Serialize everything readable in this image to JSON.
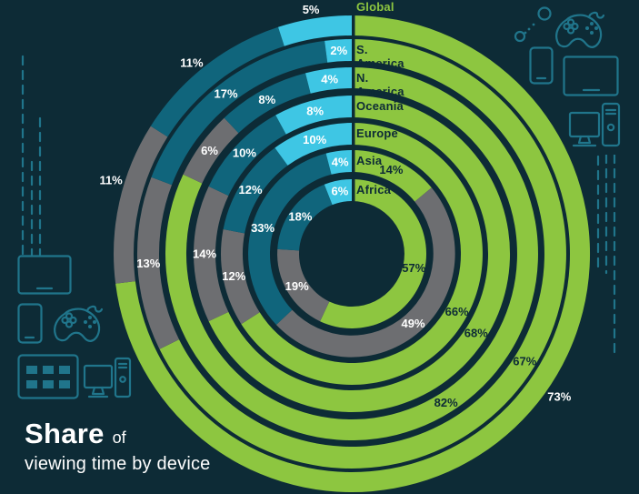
{
  "title": {
    "share": "Share",
    "of": "of",
    "line2": "viewing time by device"
  },
  "colors": {
    "background": "#0D2B36",
    "green": "#8DC640",
    "gray": "#6D6E71",
    "teal": "#10657C",
    "cyan": "#3EC6E4",
    "icon_stroke": "#20758B",
    "text_light": "#FFFFFF",
    "text_dark": "#0D2B36"
  },
  "chart_data": {
    "type": "pie",
    "variant": "concentric-donut-rings",
    "title": "Share of viewing time by device",
    "legend_position": "none",
    "rings_order": "outermost-to-innermost",
    "segments_clockwise_from_top": [
      "green",
      "gray",
      "teal",
      "cyan"
    ],
    "categories": [
      "Global",
      "S. America",
      "N. America",
      "Oceania",
      "Europe",
      "Asia",
      "Africa"
    ],
    "series": [
      {
        "name": "Global",
        "values": {
          "green": 73,
          "gray": 11,
          "teal": 11,
          "cyan": 5
        }
      },
      {
        "name": "S. America",
        "values": {
          "green": 67,
          "gray": 13,
          "teal": 17,
          "cyan": 2
        }
      },
      {
        "name": "N. America",
        "values": {
          "green": 82,
          "gray": 6,
          "teal": 8,
          "cyan": 4
        }
      },
      {
        "name": "Oceania",
        "values": {
          "green": 68,
          "gray": 14,
          "teal": 10,
          "cyan": 8
        }
      },
      {
        "name": "Europe",
        "values": {
          "green": 66,
          "gray": 12,
          "teal": 12,
          "cyan": 10
        }
      },
      {
        "name": "Asia",
        "values": {
          "green": 14,
          "gray": 49,
          "teal": 33,
          "cyan": 4
        }
      },
      {
        "name": "Africa",
        "values": {
          "green": 57,
          "gray": 19,
          "teal": 18,
          "cyan": 6
        }
      }
    ]
  },
  "decorations": {
    "top_right_icons": [
      "bubbles-icon",
      "gamepad-icon",
      "smartphone-icon",
      "tv-icon",
      "desktop-computer-icon",
      "dashed-lines"
    ],
    "left_icons": [
      "dashed-lines",
      "tv-icon",
      "smartphone-icon",
      "gamepad-icon",
      "keypad-icon",
      "desktop-computer-icon"
    ]
  }
}
